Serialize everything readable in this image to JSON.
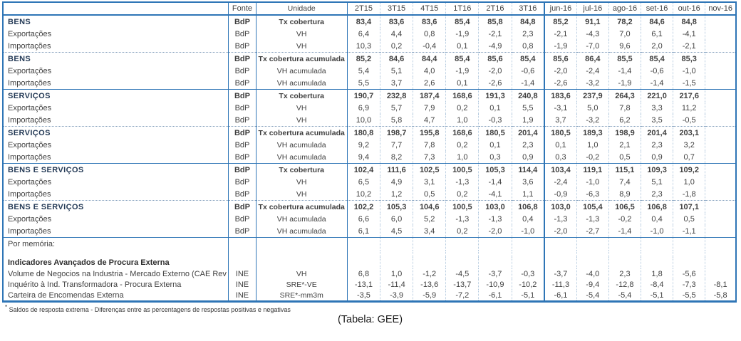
{
  "table": {
    "header": {
      "label": "",
      "fonte": "Fonte",
      "unidade": "Unidade",
      "quarters": [
        "2T15",
        "3T15",
        "4T15",
        "1T16",
        "2T16",
        "3T16"
      ],
      "months": [
        "jun-16",
        "jul-16",
        "ago-16",
        "set-16",
        "out-16",
        "nov-16"
      ]
    },
    "rows": [
      {
        "sep": null,
        "bold": true,
        "label": "BENS",
        "fonte": "BdP",
        "unidade": "Tx cobertura",
        "values": [
          "83,4",
          "83,6",
          "83,6",
          "85,4",
          "85,8",
          "84,8",
          "85,2",
          "91,1",
          "78,2",
          "84,6",
          "84,8",
          ""
        ]
      },
      {
        "sep": null,
        "bold": false,
        "label": "Exportações",
        "fonte": "BdP",
        "unidade": "VH",
        "values": [
          "6,4",
          "4,4",
          "0,8",
          "-1,9",
          "-2,1",
          "2,3",
          "-2,1",
          "-4,3",
          "7,0",
          "6,1",
          "-4,1",
          ""
        ]
      },
      {
        "sep": null,
        "bold": false,
        "label": "Importações",
        "fonte": "BdP",
        "unidade": "VH",
        "values": [
          "10,3",
          "0,2",
          "-0,4",
          "0,1",
          "-4,9",
          "0,8",
          "-1,9",
          "-7,0",
          "9,6",
          "2,0",
          "-2,1",
          ""
        ]
      },
      {
        "sep": "dotted",
        "bold": true,
        "label": "BENS",
        "fonte": "BdP",
        "unidade": "Tx cobertura acumulada",
        "values": [
          "85,2",
          "84,6",
          "84,4",
          "85,4",
          "85,6",
          "85,4",
          "85,6",
          "86,4",
          "85,5",
          "85,4",
          "85,3",
          ""
        ]
      },
      {
        "sep": null,
        "bold": false,
        "label": "Exportações",
        "fonte": "BdP",
        "unidade": "VH acumulada",
        "values": [
          "5,4",
          "5,1",
          "4,0",
          "-1,9",
          "-2,0",
          "-0,6",
          "-2,0",
          "-2,4",
          "-1,4",
          "-0,6",
          "-1,0",
          ""
        ]
      },
      {
        "sep": null,
        "bold": false,
        "label": "Importações",
        "fonte": "BdP",
        "unidade": "VH acumulada",
        "values": [
          "5,5",
          "3,7",
          "2,6",
          "0,1",
          "-2,6",
          "-1,4",
          "-2,6",
          "-3,2",
          "-1,9",
          "-1,4",
          "-1,5",
          ""
        ]
      },
      {
        "sep": "solid",
        "bold": true,
        "label": "SERVIÇOS",
        "fonte": "BdP",
        "unidade": "Tx cobertura",
        "values": [
          "190,7",
          "232,8",
          "187,4",
          "168,6",
          "191,3",
          "240,8",
          "183,6",
          "237,9",
          "264,3",
          "221,0",
          "217,6",
          ""
        ]
      },
      {
        "sep": null,
        "bold": false,
        "label": "Exportações",
        "fonte": "BdP",
        "unidade": "VH",
        "values": [
          "6,9",
          "5,7",
          "7,9",
          "0,2",
          "0,1",
          "5,5",
          "-3,1",
          "5,0",
          "7,8",
          "3,3",
          "11,2",
          ""
        ]
      },
      {
        "sep": null,
        "bold": false,
        "label": "Importações",
        "fonte": "BdP",
        "unidade": "VH",
        "values": [
          "10,0",
          "5,8",
          "4,7",
          "1,0",
          "-0,3",
          "1,9",
          "3,7",
          "-3,2",
          "6,2",
          "3,5",
          "-0,5",
          ""
        ]
      },
      {
        "sep": "dotted",
        "bold": true,
        "label": "SERVIÇOS",
        "fonte": "BdP",
        "unidade": "Tx cobertura acumulada",
        "values": [
          "180,8",
          "198,7",
          "195,8",
          "168,6",
          "180,5",
          "201,4",
          "180,5",
          "189,3",
          "198,9",
          "201,4",
          "203,1",
          ""
        ]
      },
      {
        "sep": null,
        "bold": false,
        "label": "Exportações",
        "fonte": "BdP",
        "unidade": "VH acumulada",
        "values": [
          "9,2",
          "7,7",
          "7,8",
          "0,2",
          "0,1",
          "2,3",
          "0,1",
          "1,0",
          "2,1",
          "2,3",
          "3,2",
          ""
        ]
      },
      {
        "sep": null,
        "bold": false,
        "label": "Importações",
        "fonte": "BdP",
        "unidade": "VH acumulada",
        "values": [
          "9,4",
          "8,2",
          "7,3",
          "1,0",
          "0,3",
          "0,9",
          "0,3",
          "-0,2",
          "0,5",
          "0,9",
          "0,7",
          ""
        ]
      },
      {
        "sep": "solid",
        "bold": true,
        "label": "BENS E SERVIÇOS",
        "fonte": "BdP",
        "unidade": "Tx cobertura",
        "values": [
          "102,4",
          "111,6",
          "102,5",
          "100,5",
          "105,3",
          "114,4",
          "103,4",
          "119,1",
          "115,1",
          "109,3",
          "109,2",
          ""
        ]
      },
      {
        "sep": null,
        "bold": false,
        "label": "Exportações",
        "fonte": "BdP",
        "unidade": "VH",
        "values": [
          "6,5",
          "4,9",
          "3,1",
          "-1,3",
          "-1,4",
          "3,6",
          "-2,4",
          "-1,0",
          "7,4",
          "5,1",
          "1,0",
          ""
        ]
      },
      {
        "sep": null,
        "bold": false,
        "label": "Importações",
        "fonte": "BdP",
        "unidade": "VH",
        "values": [
          "10,2",
          "1,2",
          "0,5",
          "0,2",
          "-4,1",
          "1,1",
          "-0,9",
          "-6,3",
          "8,9",
          "2,3",
          "-1,8",
          ""
        ]
      },
      {
        "sep": "dotted",
        "bold": true,
        "label": "BENS E SERVIÇOS",
        "fonte": "BdP",
        "unidade": "Tx cobertura acumulada",
        "values": [
          "102,2",
          "105,3",
          "104,6",
          "100,5",
          "103,0",
          "106,8",
          "103,0",
          "105,4",
          "106,5",
          "106,8",
          "107,1",
          ""
        ]
      },
      {
        "sep": null,
        "bold": false,
        "label": "Exportações",
        "fonte": "BdP",
        "unidade": "VH acumulada",
        "values": [
          "6,6",
          "6,0",
          "5,2",
          "-1,3",
          "-1,3",
          "0,4",
          "-1,3",
          "-1,3",
          "-0,2",
          "0,4",
          "0,5",
          ""
        ]
      },
      {
        "sep": null,
        "bold": false,
        "label": "Importações",
        "fonte": "BdP",
        "unidade": "VH acumulada",
        "values": [
          "6,1",
          "4,5",
          "3,4",
          "0,2",
          "-2,0",
          "-1,0",
          "-2,0",
          "-2,7",
          "-1,4",
          "-1,0",
          "-1,1",
          ""
        ]
      }
    ],
    "memo": {
      "title": "Por memória:",
      "subtitle": "Indicadores Avançados de Procura Externa",
      "rows": [
        {
          "label": "Volume de Negocios na Industria - Mercado Externo (CAE Rev",
          "fonte": "INE",
          "unidade": "VH",
          "values": [
            "6,8",
            "1,0",
            "-1,2",
            "-4,5",
            "-3,7",
            "-0,3",
            "-3,7",
            "-4,0",
            "2,3",
            "1,8",
            "-5,6",
            ""
          ]
        },
        {
          "label": "Inquérito à Ind. Transformadora - Procura Externa",
          "fonte": "INE",
          "unidade": "SRE*-VE",
          "values": [
            "-13,1",
            "-11,4",
            "-13,6",
            "-13,7",
            "-10,9",
            "-10,2",
            "-11,3",
            "-9,4",
            "-12,8",
            "-8,4",
            "-7,3",
            "-8,1"
          ]
        },
        {
          "label": "Carteira de Encomendas Externa",
          "fonte": "INE",
          "unidade": "SRE*-mm3m",
          "values": [
            "-3,5",
            "-3,9",
            "-5,9",
            "-7,2",
            "-6,1",
            "-5,1",
            "-6,1",
            "-5,4",
            "-5,4",
            "-5,1",
            "-5,5",
            "-5,8"
          ]
        }
      ]
    }
  },
  "footnote": {
    "marker": "*",
    "text": "Saldos de resposta extrema - Diferenças entre as percentagens de respostas positivas e negativas"
  },
  "caption": "(Tabela: GEE)",
  "colors": {
    "border_blue": "#2E75B6",
    "dotted_separator": "#7f9cba",
    "text": "#3f3f3f",
    "group_label": "#243a56"
  }
}
